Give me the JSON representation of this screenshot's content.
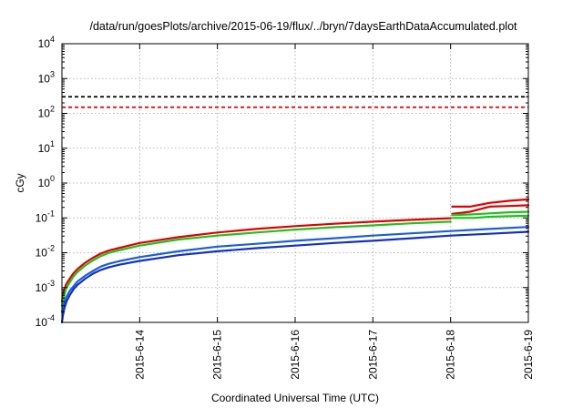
{
  "chart_data": {
    "type": "line",
    "title": "/data/run/goesPlots/archive/2015-06-19/flux/../bryn/7daysEarthDataAccumulated.plot",
    "xlabel": "Coordinated Universal Time (UTC)",
    "ylabel": "cGy",
    "yscale": "log",
    "ylim": [
      0.0001,
      10000
    ],
    "xlim": [
      -1.0,
      5.0
    ],
    "xticks": [
      {
        "pos": 0,
        "label": "2015-6-14"
      },
      {
        "pos": 1,
        "label": "2015-6-15"
      },
      {
        "pos": 2,
        "label": "2015-6-16"
      },
      {
        "pos": 3,
        "label": "2015-6-17"
      },
      {
        "pos": 4,
        "label": "2015-6-18"
      },
      {
        "pos": 5,
        "label": "2015-6-19"
      }
    ],
    "yticks": [
      {
        "value": 0.0001,
        "base": "10",
        "exp": "-4"
      },
      {
        "value": 0.001,
        "base": "10",
        "exp": "-3"
      },
      {
        "value": 0.01,
        "base": "10",
        "exp": "-2"
      },
      {
        "value": 0.1,
        "base": "10",
        "exp": "-1"
      },
      {
        "value": 1,
        "base": "10",
        "exp": "0"
      },
      {
        "value": 10,
        "base": "10",
        "exp": "1"
      },
      {
        "value": 100,
        "base": "10",
        "exp": "2"
      },
      {
        "value": 1000,
        "base": "10",
        "exp": "3"
      },
      {
        "value": 10000,
        "base": "10",
        "exp": "4"
      }
    ],
    "grid": true,
    "thresholds": [
      {
        "value": 300,
        "color": "#000000"
      },
      {
        "value": 150,
        "color": "#e00000"
      }
    ],
    "series": [
      {
        "color": "#e00000",
        "width": 2.2,
        "x": [
          -1.0,
          -0.98,
          -0.95,
          -0.9,
          -0.85,
          -0.8,
          -0.7,
          -0.6,
          -0.5,
          -0.4,
          -0.25,
          0.0,
          0.5,
          1.0,
          1.5,
          2.0,
          2.5,
          3.0,
          3.5,
          4.0
        ],
        "y": [
          0.0004,
          0.0007,
          0.0012,
          0.0018,
          0.0026,
          0.0034,
          0.0052,
          0.0072,
          0.0095,
          0.0115,
          0.014,
          0.019,
          0.028,
          0.038,
          0.048,
          0.058,
          0.068,
          0.078,
          0.088,
          0.098
        ]
      },
      {
        "color": "#e00000",
        "width": 2.2,
        "x": [
          4.02,
          4.25,
          4.5,
          4.75,
          5.0
        ],
        "y": [
          0.21,
          0.21,
          0.27,
          0.31,
          0.34
        ]
      },
      {
        "color": "#e00000",
        "width": 2.2,
        "x": [
          4.02,
          4.25,
          4.5,
          4.75,
          5.0
        ],
        "y": [
          0.13,
          0.15,
          0.21,
          0.22,
          0.23
        ]
      },
      {
        "color": "#20c020",
        "width": 2.2,
        "x": [
          -1.0,
          -0.98,
          -0.95,
          -0.9,
          -0.85,
          -0.8,
          -0.7,
          -0.6,
          -0.5,
          -0.4,
          -0.25,
          0.0,
          0.5,
          1.0,
          1.5,
          2.0,
          2.5,
          3.0,
          3.5,
          4.0
        ],
        "y": [
          0.0003,
          0.0005,
          0.0009,
          0.0014,
          0.0021,
          0.0028,
          0.0043,
          0.006,
          0.008,
          0.0098,
          0.012,
          0.016,
          0.024,
          0.031,
          0.038,
          0.046,
          0.054,
          0.061,
          0.07,
          0.078
        ]
      },
      {
        "color": "#20c020",
        "width": 2.2,
        "x": [
          4.02,
          4.25,
          4.5,
          4.75,
          5.0
        ],
        "y": [
          0.12,
          0.125,
          0.135,
          0.145,
          0.15
        ]
      },
      {
        "color": "#20c020",
        "width": 2.2,
        "x": [
          4.02,
          4.3,
          4.5,
          4.75,
          5.0
        ],
        "y": [
          0.1,
          0.1,
          0.108,
          0.112,
          0.115
        ]
      },
      {
        "color": "#1a5fd8",
        "width": 2.2,
        "x": [
          -1.0,
          -0.98,
          -0.95,
          -0.9,
          -0.85,
          -0.8,
          -0.7,
          -0.6,
          -0.5,
          -0.4,
          -0.25,
          0.0,
          0.5,
          1.0,
          1.5,
          2.0,
          2.5,
          3.0,
          3.5,
          4.0,
          4.5,
          5.0
        ],
        "y": [
          0.0002,
          0.0003,
          0.0005,
          0.0008,
          0.0011,
          0.0015,
          0.0022,
          0.003,
          0.004,
          0.0048,
          0.0058,
          0.0075,
          0.011,
          0.015,
          0.018,
          0.022,
          0.026,
          0.031,
          0.036,
          0.042,
          0.048,
          0.055
        ]
      },
      {
        "color": "#1530c0",
        "width": 2.2,
        "x": [
          -1.0,
          -0.99,
          -0.97,
          -0.94,
          -0.9,
          -0.85,
          -0.8,
          -0.7,
          -0.6,
          -0.5,
          -0.4,
          -0.25,
          0.0,
          0.5,
          1.0,
          1.5,
          2.0,
          2.5,
          3.0,
          3.5,
          4.0,
          4.5,
          5.0
        ],
        "y": [
          0.0001,
          0.00015,
          0.00025,
          0.0004,
          0.0006,
          0.0009,
          0.0012,
          0.0018,
          0.0025,
          0.0032,
          0.0038,
          0.0046,
          0.0058,
          0.0085,
          0.011,
          0.0135,
          0.016,
          0.019,
          0.022,
          0.026,
          0.031,
          0.035,
          0.04
        ]
      }
    ]
  }
}
